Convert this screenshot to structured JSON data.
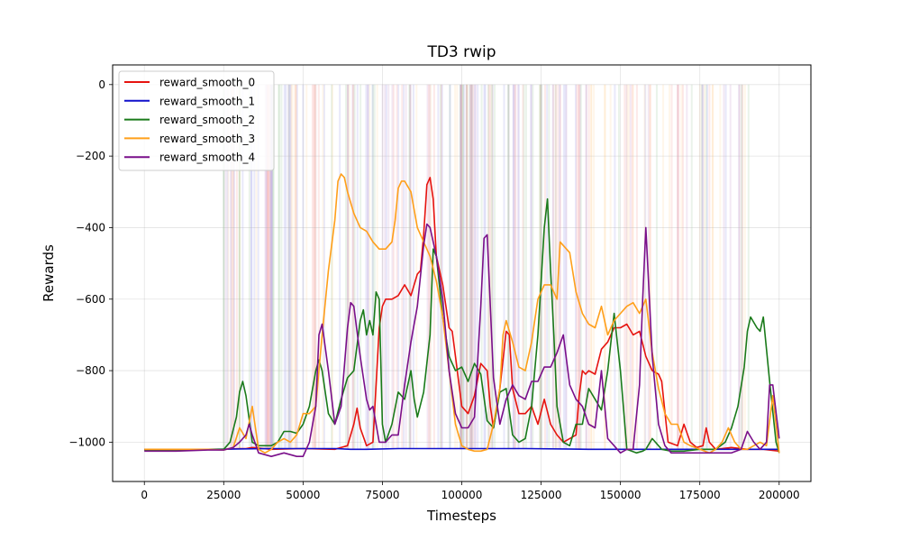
{
  "chart_data": {
    "type": "line",
    "title": "TD3 rwip",
    "xlabel": "Timesteps",
    "ylabel": "Rewards",
    "xlim": [
      -10000,
      210000
    ],
    "ylim": [
      -1110,
      55
    ],
    "xticks": [
      0,
      25000,
      50000,
      75000,
      100000,
      125000,
      150000,
      175000,
      200000
    ],
    "yticks": [
      0,
      -200,
      -400,
      -600,
      -800,
      -1000
    ],
    "xtick_labels": [
      "0",
      "25000",
      "50000",
      "75000",
      "100000",
      "125000",
      "150000",
      "175000",
      "200000"
    ],
    "ytick_labels": [
      "0",
      "−200",
      "−400",
      "−600",
      "−800",
      "−1000"
    ],
    "grid": true,
    "legend_position": "top-left",
    "raw_episode_spikes": "faint translucent raw-reward traces behind each smoothed series, frequently spiking between about -1000 and 0 from roughly 25000 to 195000 timesteps",
    "series": [
      {
        "name": "reward_smooth_0",
        "color": "#e6130f",
        "x": [
          0,
          10000,
          20000,
          25000,
          30000,
          32000,
          34000,
          40000,
          50000,
          60000,
          64000,
          66000,
          67000,
          68000,
          70000,
          72000,
          74000,
          75000,
          76000,
          78000,
          80000,
          82000,
          84000,
          86000,
          87000,
          88000,
          89000,
          90000,
          91000,
          92000,
          94000,
          96000,
          97000,
          98000,
          100000,
          102000,
          104000,
          106000,
          108000,
          109000,
          110000,
          112000,
          114000,
          115000,
          116000,
          118000,
          120000,
          122000,
          124000,
          126000,
          128000,
          130000,
          132000,
          134000,
          136000,
          137000,
          138000,
          139000,
          140000,
          142000,
          144000,
          146000,
          148000,
          150000,
          152000,
          154000,
          156000,
          158000,
          160000,
          162000,
          163000,
          165000,
          168000,
          170000,
          172000,
          174000,
          176000,
          177000,
          178000,
          180000,
          185000,
          190000,
          195000,
          200000
        ],
        "values": [
          -1020,
          -1022,
          -1020,
          -1020,
          -1018,
          -1018,
          -1015,
          -1020,
          -1018,
          -1020,
          -1010,
          -950,
          -905,
          -960,
          -1010,
          -1000,
          -680,
          -620,
          -600,
          -600,
          -590,
          -560,
          -590,
          -530,
          -520,
          -420,
          -280,
          -260,
          -320,
          -480,
          -560,
          -680,
          -690,
          -760,
          -900,
          -920,
          -870,
          -780,
          -800,
          -900,
          -960,
          -850,
          -690,
          -700,
          -850,
          -920,
          -920,
          -900,
          -950,
          -880,
          -950,
          -980,
          -1000,
          -990,
          -980,
          -870,
          -800,
          -810,
          -800,
          -810,
          -740,
          -720,
          -680,
          -680,
          -670,
          -700,
          -690,
          -760,
          -800,
          -810,
          -830,
          -1000,
          -1010,
          -950,
          -1000,
          -1015,
          -1010,
          -960,
          -1000,
          -1020,
          -1015,
          -1020,
          -1020,
          -1025
        ]
      },
      {
        "name": "reward_smooth_1",
        "color": "#1010cc",
        "x": [
          0,
          20000,
          40000,
          60000,
          65000,
          70000,
          80000,
          100000,
          120000,
          140000,
          160000,
          180000,
          200000
        ],
        "values": [
          -1020,
          -1020,
          -1018,
          -1018,
          -1020,
          -1020,
          -1018,
          -1018,
          -1018,
          -1020,
          -1020,
          -1020,
          -1020
        ]
      },
      {
        "name": "reward_smooth_2",
        "color": "#1a7a1a",
        "x": [
          0,
          10000,
          20000,
          25000,
          27000,
          29000,
          30000,
          31000,
          32000,
          34000,
          36000,
          40000,
          42000,
          44000,
          46000,
          48000,
          50000,
          52000,
          54000,
          55000,
          56000,
          58000,
          60000,
          62000,
          64000,
          66000,
          68000,
          69000,
          70000,
          71000,
          72000,
          73000,
          74000,
          75000,
          76000,
          78000,
          80000,
          82000,
          84000,
          85000,
          86000,
          88000,
          90000,
          91000,
          92000,
          94000,
          96000,
          98000,
          100000,
          102000,
          104000,
          106000,
          108000,
          110000,
          112000,
          114000,
          116000,
          118000,
          120000,
          122000,
          124000,
          125000,
          126000,
          127000,
          128000,
          129000,
          130000,
          132000,
          134000,
          136000,
          138000,
          140000,
          142000,
          144000,
          146000,
          148000,
          150000,
          152000,
          155000,
          157000,
          158000,
          160000,
          163000,
          166000,
          170000,
          175000,
          180000,
          183000,
          185000,
          187000,
          189000,
          190000,
          191000,
          193000,
          194000,
          195000,
          197000,
          199000,
          200000
        ],
        "values": [
          -1022,
          -1022,
          -1020,
          -1020,
          -1000,
          -930,
          -860,
          -830,
          -870,
          -1000,
          -1010,
          -1010,
          -1000,
          -970,
          -970,
          -975,
          -950,
          -900,
          -800,
          -770,
          -800,
          -920,
          -950,
          -880,
          -820,
          -800,
          -660,
          -630,
          -700,
          -660,
          -700,
          -580,
          -600,
          -950,
          -1000,
          -950,
          -860,
          -880,
          -800,
          -880,
          -930,
          -860,
          -700,
          -460,
          -480,
          -650,
          -760,
          -800,
          -790,
          -830,
          -780,
          -810,
          -940,
          -960,
          -860,
          -850,
          -980,
          -1000,
          -990,
          -900,
          -700,
          -550,
          -400,
          -320,
          -520,
          -700,
          -900,
          -1000,
          -1010,
          -950,
          -950,
          -850,
          -880,
          -910,
          -800,
          -640,
          -800,
          -1020,
          -1030,
          -1025,
          -1020,
          -990,
          -1020,
          -1025,
          -1025,
          -1020,
          -1020,
          -1000,
          -960,
          -900,
          -790,
          -690,
          -650,
          -680,
          -690,
          -650,
          -830,
          -1000,
          -1030
        ]
      },
      {
        "name": "reward_smooth_3",
        "color": "#ff9f1a",
        "x": [
          0,
          10000,
          20000,
          25000,
          28000,
          30000,
          32000,
          34000,
          36000,
          38000,
          40000,
          42000,
          44000,
          46000,
          48000,
          50000,
          52000,
          54000,
          56000,
          58000,
          60000,
          61000,
          62000,
          63000,
          64000,
          66000,
          68000,
          70000,
          72000,
          74000,
          76000,
          78000,
          79000,
          80000,
          81000,
          82000,
          84000,
          86000,
          88000,
          90000,
          92000,
          94000,
          96000,
          98000,
          100000,
          102000,
          104000,
          106000,
          108000,
          110000,
          112000,
          113000,
          114000,
          116000,
          118000,
          120000,
          122000,
          124000,
          126000,
          128000,
          130000,
          131000,
          132000,
          134000,
          136000,
          138000,
          140000,
          142000,
          144000,
          146000,
          148000,
          150000,
          152000,
          154000,
          156000,
          158000,
          160000,
          162000,
          164000,
          166000,
          168000,
          170000,
          172000,
          175000,
          178000,
          180000,
          182000,
          184000,
          186000,
          188000,
          190000,
          192000,
          194000,
          196000,
          198000,
          200000
        ],
        "values": [
          -1020,
          -1020,
          -1020,
          -1022,
          -1015,
          -960,
          -990,
          -900,
          -1020,
          -1030,
          -1020,
          -1000,
          -990,
          -1000,
          -980,
          -920,
          -920,
          -900,
          -700,
          -520,
          -380,
          -270,
          -250,
          -260,
          -300,
          -360,
          -400,
          -410,
          -440,
          -460,
          -460,
          -440,
          -380,
          -290,
          -270,
          -270,
          -300,
          -400,
          -440,
          -480,
          -550,
          -650,
          -800,
          -950,
          -1010,
          -1020,
          -1025,
          -1025,
          -1020,
          -950,
          -850,
          -700,
          -660,
          -720,
          -790,
          -800,
          -720,
          -600,
          -560,
          -560,
          -600,
          -440,
          -450,
          -470,
          -580,
          -640,
          -670,
          -680,
          -620,
          -700,
          -660,
          -640,
          -620,
          -610,
          -640,
          -600,
          -750,
          -850,
          -920,
          -950,
          -950,
          -1000,
          -1010,
          -1020,
          -1030,
          -1020,
          -1000,
          -960,
          -1000,
          -1020,
          -1020,
          -1010,
          -1000,
          -1010,
          -870,
          -1030
        ]
      },
      {
        "name": "reward_smooth_4",
        "color": "#7a0f8a",
        "x": [
          0,
          10000,
          20000,
          25000,
          28000,
          30000,
          32000,
          33000,
          34000,
          36000,
          40000,
          44000,
          48000,
          50000,
          52000,
          54000,
          55000,
          56000,
          58000,
          60000,
          62000,
          64000,
          65000,
          66000,
          68000,
          70000,
          71000,
          72000,
          74000,
          76000,
          78000,
          80000,
          82000,
          84000,
          86000,
          88000,
          89000,
          90000,
          92000,
          94000,
          96000,
          98000,
          100000,
          102000,
          104000,
          106000,
          107000,
          108000,
          110000,
          112000,
          114000,
          116000,
          118000,
          120000,
          122000,
          124000,
          126000,
          128000,
          130000,
          132000,
          134000,
          136000,
          138000,
          140000,
          142000,
          144000,
          146000,
          148000,
          150000,
          152000,
          154000,
          156000,
          157000,
          158000,
          160000,
          162000,
          164000,
          166000,
          170000,
          175000,
          180000,
          185000,
          188000,
          190000,
          192000,
          194000,
          196000,
          197000,
          198000,
          200000
        ],
        "values": [
          -1025,
          -1025,
          -1022,
          -1022,
          -1015,
          -1000,
          -980,
          -950,
          -980,
          -1030,
          -1040,
          -1030,
          -1040,
          -1040,
          -1000,
          -900,
          -700,
          -670,
          -800,
          -950,
          -900,
          -680,
          -610,
          -620,
          -760,
          -880,
          -910,
          -900,
          -1000,
          -1000,
          -980,
          -980,
          -840,
          -720,
          -620,
          -450,
          -390,
          -400,
          -480,
          -600,
          -800,
          -920,
          -960,
          -960,
          -930,
          -620,
          -430,
          -420,
          -820,
          -950,
          -880,
          -840,
          -870,
          -880,
          -830,
          -830,
          -790,
          -790,
          -750,
          -700,
          -840,
          -880,
          -900,
          -950,
          -960,
          -800,
          -990,
          -1010,
          -1030,
          -1020,
          -1020,
          -840,
          -600,
          -400,
          -760,
          -950,
          -1010,
          -1030,
          -1030,
          -1030,
          -1030,
          -1030,
          -1020,
          -970,
          -1000,
          -1020,
          -1000,
          -840,
          -840,
          -990
        ]
      }
    ]
  }
}
